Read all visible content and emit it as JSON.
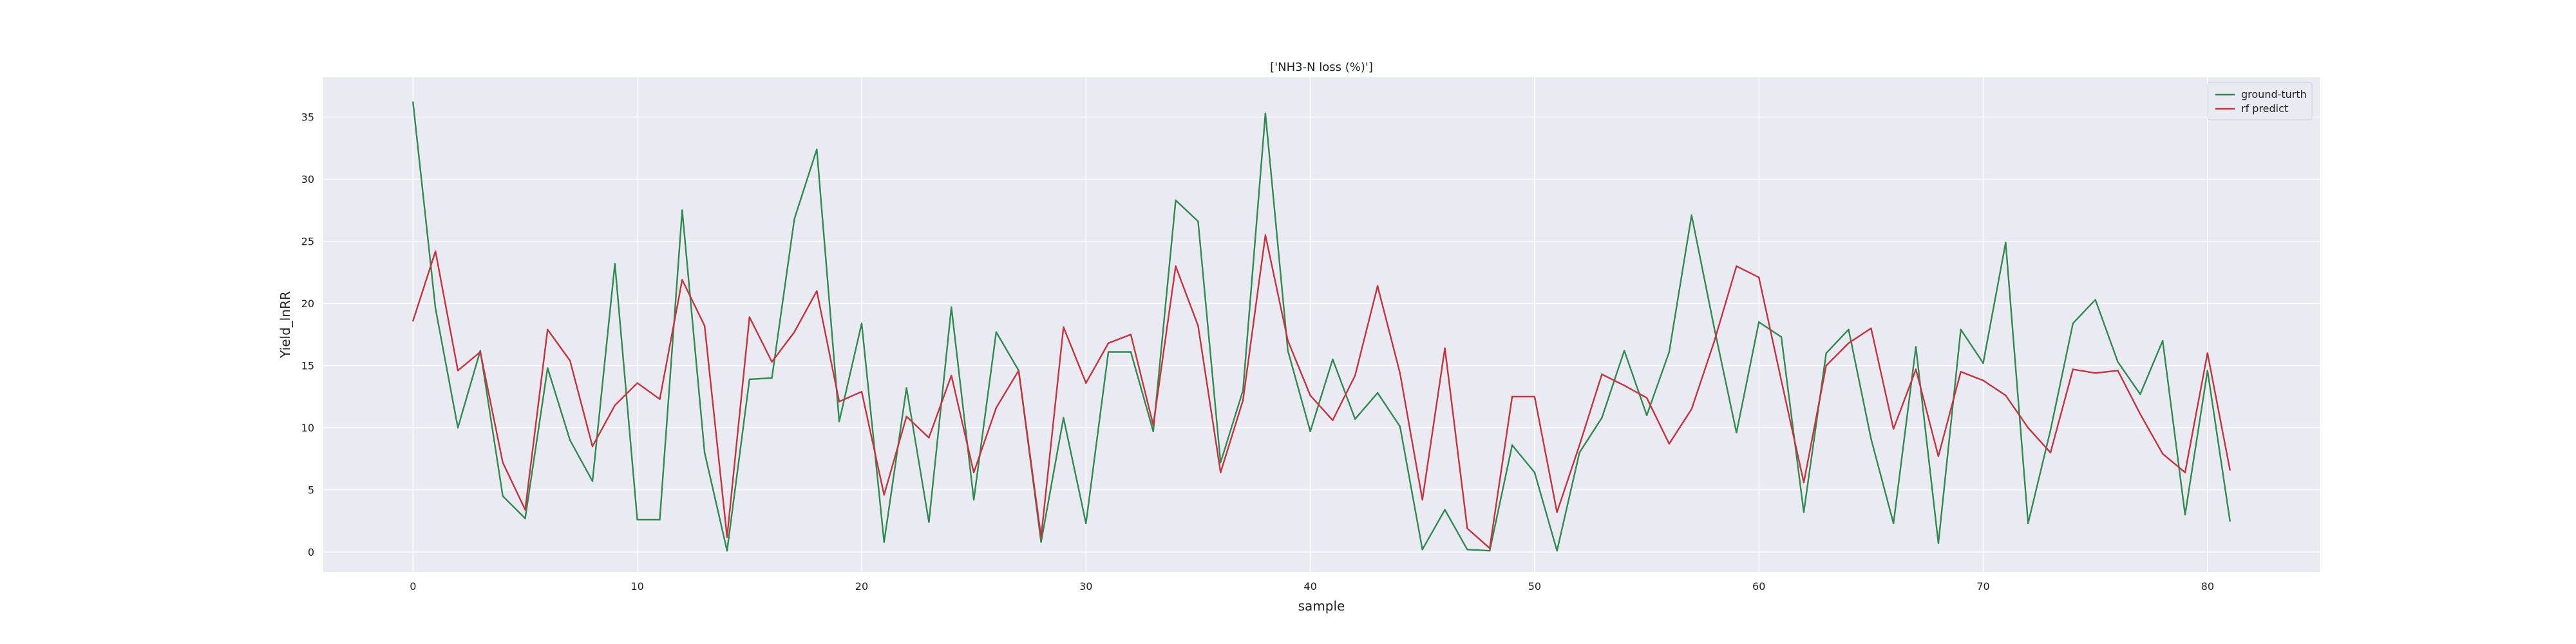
{
  "chart_data": {
    "type": "line",
    "title": "['NH3-N loss (%)']",
    "xlabel": "sample",
    "ylabel": "Yield_lnRR",
    "xlim": [
      -4,
      85
    ],
    "ylim": [
      -1.6,
      38.2
    ],
    "xticks": [
      0,
      10,
      20,
      30,
      40,
      50,
      60,
      70,
      80
    ],
    "yticks": [
      0,
      5,
      10,
      15,
      20,
      25,
      30,
      35
    ],
    "grid": true,
    "legend_position": "top-right",
    "background_color": "#eaeaf2",
    "series": [
      {
        "name": "ground-turth",
        "color": "#2e8b4e",
        "values": [
          36.2,
          19.6,
          10.0,
          16.2,
          4.5,
          2.7,
          14.8,
          9.0,
          5.7,
          23.2,
          2.6,
          2.6,
          27.5,
          8.0,
          0.1,
          13.9,
          14.0,
          26.8,
          32.4,
          10.5,
          18.4,
          0.8,
          13.2,
          2.4,
          19.7,
          4.2,
          17.7,
          14.6,
          0.8,
          10.8,
          2.3,
          16.1,
          16.1,
          9.7,
          28.3,
          26.6,
          7.2,
          13.0,
          35.3,
          16.2,
          9.7,
          15.5,
          10.7,
          12.8,
          10.1,
          0.2,
          3.4,
          0.2,
          0.1,
          8.6,
          6.4,
          0.1,
          8.0,
          10.8,
          16.2,
          11.0,
          16.1,
          27.1,
          18.1,
          9.6,
          18.5,
          17.3,
          3.2,
          16.0,
          17.9,
          9.1,
          2.3,
          16.5,
          0.7,
          17.9,
          15.2,
          24.9,
          2.3,
          9.8,
          18.4,
          20.3,
          15.3,
          12.7,
          17.0,
          3.0,
          14.6,
          2.5
        ]
      },
      {
        "name": "rf predict",
        "color": "#c8323c",
        "values": [
          18.6,
          24.2,
          14.6,
          16.1,
          7.2,
          3.4,
          17.9,
          15.4,
          8.5,
          11.8,
          13.6,
          12.3,
          21.9,
          18.2,
          1.2,
          18.9,
          15.3,
          17.7,
          21.0,
          12.1,
          12.9,
          4.6,
          10.9,
          9.2,
          14.2,
          6.4,
          11.6,
          14.6,
          1.2,
          18.1,
          13.6,
          16.8,
          17.5,
          10.2,
          23.0,
          18.2,
          6.4,
          12.2,
          25.5,
          17.0,
          12.6,
          10.6,
          14.2,
          21.4,
          14.4,
          4.2,
          16.4,
          1.9,
          0.3,
          12.5,
          12.5,
          3.2,
          8.6,
          14.3,
          13.4,
          12.4,
          8.7,
          11.5,
          16.9,
          23.0,
          22.1,
          13.8,
          5.6,
          15.0,
          16.8,
          18.0,
          9.9,
          14.7,
          7.7,
          14.5,
          13.8,
          12.6,
          10.0,
          8.0,
          14.7,
          14.4,
          14.6,
          11.1,
          7.9,
          6.4,
          16.0,
          6.6
        ]
      }
    ]
  }
}
